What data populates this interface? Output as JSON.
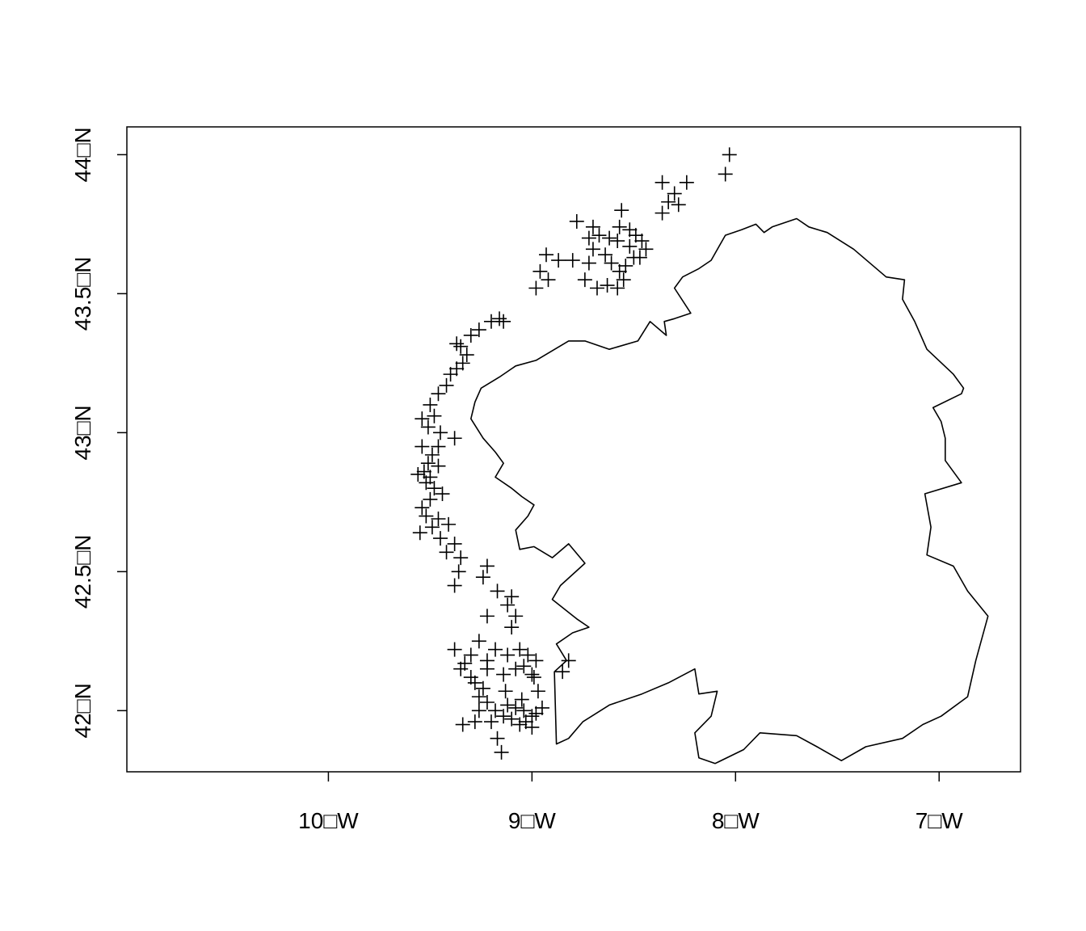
{
  "map": {
    "title": "",
    "x_ticks": [
      {
        "value": -10,
        "label": "10□W"
      },
      {
        "value": -9,
        "label": "9□W"
      },
      {
        "value": -8,
        "label": "8□W"
      },
      {
        "value": -7,
        "label": "7□W"
      }
    ],
    "y_ticks": [
      {
        "value": 42.0,
        "label": "42□N"
      },
      {
        "value": 42.5,
        "label": "42.5□N"
      },
      {
        "value": 43.0,
        "label": "43□N"
      },
      {
        "value": 43.5,
        "label": "43.5□N"
      },
      {
        "value": 44.0,
        "label": "44□N"
      }
    ],
    "xlim": [
      -10.99,
      -6.6
    ],
    "ylim": [
      41.78,
      44.1
    ],
    "colors": {
      "line": "#000000",
      "background": "#ffffff"
    },
    "point_symbol": "plus",
    "coastline": [
      [
        -8.89,
        42.14
      ],
      [
        -8.88,
        41.88
      ],
      [
        -8.82,
        41.9
      ],
      [
        -8.75,
        41.96
      ],
      [
        -8.62,
        42.02
      ],
      [
        -8.46,
        42.06
      ],
      [
        -8.33,
        42.1
      ],
      [
        -8.2,
        42.15
      ],
      [
        -8.18,
        42.06
      ],
      [
        -8.09,
        42.07
      ],
      [
        -8.12,
        41.98
      ],
      [
        -8.2,
        41.92
      ],
      [
        -8.18,
        41.83
      ],
      [
        -8.1,
        41.81
      ],
      [
        -7.96,
        41.86
      ],
      [
        -7.88,
        41.92
      ],
      [
        -7.7,
        41.91
      ],
      [
        -7.6,
        41.87
      ],
      [
        -7.48,
        41.82
      ],
      [
        -7.36,
        41.87
      ],
      [
        -7.18,
        41.9
      ],
      [
        -7.08,
        41.95
      ],
      [
        -6.99,
        41.98
      ],
      [
        -6.86,
        42.05
      ],
      [
        -6.82,
        42.18
      ],
      [
        -6.76,
        42.34
      ],
      [
        -6.86,
        42.43
      ],
      [
        -6.93,
        42.52
      ],
      [
        -7.06,
        42.56
      ],
      [
        -7.04,
        42.66
      ],
      [
        -7.07,
        42.78
      ],
      [
        -6.89,
        42.82
      ],
      [
        -6.97,
        42.9
      ],
      [
        -6.97,
        42.98
      ],
      [
        -6.99,
        43.04
      ],
      [
        -7.03,
        43.09
      ],
      [
        -6.89,
        43.14
      ],
      [
        -6.88,
        43.16
      ],
      [
        -6.93,
        43.21
      ],
      [
        -7.06,
        43.3
      ],
      [
        -7.12,
        43.4
      ],
      [
        -7.18,
        43.48
      ],
      [
        -7.17,
        43.55
      ],
      [
        -7.26,
        43.56
      ],
      [
        -7.42,
        43.66
      ],
      [
        -7.55,
        43.72
      ],
      [
        -7.64,
        43.74
      ],
      [
        -7.7,
        43.77
      ],
      [
        -7.82,
        43.74
      ],
      [
        -7.86,
        43.72
      ],
      [
        -7.9,
        43.75
      ],
      [
        -7.97,
        43.73
      ],
      [
        -8.05,
        43.71
      ],
      [
        -8.12,
        43.62
      ],
      [
        -8.18,
        43.59
      ],
      [
        -8.26,
        43.56
      ],
      [
        -8.3,
        43.52
      ],
      [
        -8.22,
        43.43
      ],
      [
        -8.3,
        43.41
      ],
      [
        -8.35,
        43.4
      ],
      [
        -8.34,
        43.35
      ],
      [
        -8.42,
        43.4
      ],
      [
        -8.48,
        43.33
      ],
      [
        -8.62,
        43.3
      ],
      [
        -8.74,
        43.33
      ],
      [
        -8.82,
        43.33
      ],
      [
        -8.98,
        43.26
      ],
      [
        -9.08,
        43.24
      ],
      [
        -9.16,
        43.2
      ],
      [
        -9.25,
        43.16
      ],
      [
        -9.28,
        43.11
      ],
      [
        -9.3,
        43.05
      ],
      [
        -9.24,
        42.98
      ],
      [
        -9.18,
        42.93
      ],
      [
        -9.14,
        42.89
      ],
      [
        -9.18,
        42.84
      ],
      [
        -9.1,
        42.8
      ],
      [
        -9.05,
        42.77
      ],
      [
        -8.99,
        42.74
      ],
      [
        -9.02,
        42.7
      ],
      [
        -9.08,
        42.65
      ],
      [
        -9.06,
        42.58
      ],
      [
        -8.99,
        42.59
      ],
      [
        -8.9,
        42.55
      ],
      [
        -8.82,
        42.6
      ],
      [
        -8.74,
        42.53
      ],
      [
        -8.86,
        42.45
      ],
      [
        -8.9,
        42.4
      ],
      [
        -8.78,
        42.33
      ],
      [
        -8.72,
        42.3
      ],
      [
        -8.8,
        42.28
      ],
      [
        -8.88,
        42.24
      ],
      [
        -8.83,
        42.18
      ],
      [
        -8.89,
        42.14
      ]
    ],
    "points": [
      [
        -8.03,
        44.0
      ],
      [
        -8.05,
        43.93
      ],
      [
        -8.36,
        43.9
      ],
      [
        -8.24,
        43.9
      ],
      [
        -8.3,
        43.86
      ],
      [
        -8.33,
        43.83
      ],
      [
        -8.28,
        43.82
      ],
      [
        -8.36,
        43.79
      ],
      [
        -8.56,
        43.8
      ],
      [
        -8.57,
        43.74
      ],
      [
        -8.52,
        43.73
      ],
      [
        -8.49,
        43.71
      ],
      [
        -8.46,
        43.69
      ],
      [
        -8.44,
        43.66
      ],
      [
        -8.47,
        43.63
      ],
      [
        -8.52,
        43.67
      ],
      [
        -8.58,
        43.69
      ],
      [
        -8.62,
        43.7
      ],
      [
        -8.67,
        43.71
      ],
      [
        -8.72,
        43.7
      ],
      [
        -8.78,
        43.76
      ],
      [
        -8.7,
        43.66
      ],
      [
        -8.64,
        43.64
      ],
      [
        -8.61,
        43.61
      ],
      [
        -8.57,
        43.58
      ],
      [
        -8.55,
        43.55
      ],
      [
        -8.58,
        43.52
      ],
      [
        -8.63,
        43.53
      ],
      [
        -8.68,
        43.52
      ],
      [
        -8.74,
        43.55
      ],
      [
        -8.8,
        43.62
      ],
      [
        -8.72,
        43.61
      ],
      [
        -8.87,
        43.62
      ],
      [
        -8.93,
        43.64
      ],
      [
        -8.96,
        43.58
      ],
      [
        -8.92,
        43.55
      ],
      [
        -8.98,
        43.52
      ],
      [
        -8.7,
        43.74
      ],
      [
        -8.54,
        43.6
      ],
      [
        -8.5,
        43.63
      ],
      [
        -9.14,
        43.4
      ],
      [
        -9.16,
        43.41
      ],
      [
        -9.2,
        43.4
      ],
      [
        -9.26,
        43.37
      ],
      [
        -9.3,
        43.35
      ],
      [
        -9.37,
        43.32
      ],
      [
        -9.35,
        43.31
      ],
      [
        -9.32,
        43.28
      ],
      [
        -9.34,
        43.25
      ],
      [
        -9.37,
        43.23
      ],
      [
        -9.4,
        43.21
      ],
      [
        -9.42,
        43.17
      ],
      [
        -9.46,
        43.14
      ],
      [
        -9.5,
        43.1
      ],
      [
        -9.48,
        43.06
      ],
      [
        -9.54,
        43.05
      ],
      [
        -9.51,
        43.02
      ],
      [
        -9.45,
        43.0
      ],
      [
        -9.38,
        42.98
      ],
      [
        -9.46,
        42.95
      ],
      [
        -9.54,
        42.95
      ],
      [
        -9.49,
        42.92
      ],
      [
        -9.51,
        42.89
      ],
      [
        -9.46,
        42.88
      ],
      [
        -9.53,
        42.86
      ],
      [
        -9.56,
        42.85
      ],
      [
        -9.5,
        42.84
      ],
      [
        -9.52,
        42.82
      ],
      [
        -9.48,
        42.8
      ],
      [
        -9.44,
        42.78
      ],
      [
        -9.5,
        42.76
      ],
      [
        -9.54,
        42.73
      ],
      [
        -9.52,
        42.7
      ],
      [
        -9.46,
        42.69
      ],
      [
        -9.41,
        42.67
      ],
      [
        -9.49,
        42.66
      ],
      [
        -9.55,
        42.64
      ],
      [
        -9.45,
        42.62
      ],
      [
        -9.38,
        42.6
      ],
      [
        -9.42,
        42.57
      ],
      [
        -9.35,
        42.55
      ],
      [
        -9.36,
        42.5
      ],
      [
        -9.38,
        42.45
      ],
      [
        -9.22,
        42.52
      ],
      [
        -9.24,
        42.48
      ],
      [
        -9.17,
        42.43
      ],
      [
        -9.1,
        42.41
      ],
      [
        -9.12,
        42.38
      ],
      [
        -9.08,
        42.34
      ],
      [
        -9.1,
        42.3
      ],
      [
        -9.22,
        42.34
      ],
      [
        -9.38,
        42.22
      ],
      [
        -9.3,
        42.2
      ],
      [
        -9.26,
        42.25
      ],
      [
        -9.18,
        42.22
      ],
      [
        -9.12,
        42.2
      ],
      [
        -9.06,
        42.22
      ],
      [
        -9.02,
        42.2
      ],
      [
        -8.98,
        42.18
      ],
      [
        -9.04,
        42.16
      ],
      [
        -9.0,
        42.13
      ],
      [
        -9.08,
        42.15
      ],
      [
        -9.14,
        42.13
      ],
      [
        -9.22,
        42.15
      ],
      [
        -9.3,
        42.12
      ],
      [
        -9.35,
        42.15
      ],
      [
        -9.28,
        42.1
      ],
      [
        -9.24,
        42.08
      ],
      [
        -9.26,
        42.05
      ],
      [
        -9.22,
        42.03
      ],
      [
        -9.26,
        42.0
      ],
      [
        -9.18,
        42.0
      ],
      [
        -9.12,
        42.02
      ],
      [
        -9.08,
        42.01
      ],
      [
        -9.04,
        42.0
      ],
      [
        -9.0,
        41.98
      ],
      [
        -9.03,
        41.96
      ],
      [
        -9.06,
        41.95
      ],
      [
        -9.1,
        41.97
      ],
      [
        -9.14,
        41.98
      ],
      [
        -9.2,
        41.96
      ],
      [
        -9.28,
        41.96
      ],
      [
        -9.34,
        41.95
      ],
      [
        -9.17,
        41.9
      ],
      [
        -9.15,
        41.85
      ],
      [
        -9.0,
        41.94
      ],
      [
        -8.98,
        41.99
      ],
      [
        -8.95,
        42.01
      ],
      [
        -8.97,
        42.07
      ],
      [
        -8.99,
        42.12
      ],
      [
        -8.82,
        42.18
      ],
      [
        -8.85,
        42.14
      ],
      [
        -9.05,
        42.04
      ],
      [
        -9.22,
        42.18
      ],
      [
        -9.33,
        42.17
      ],
      [
        -9.13,
        42.07
      ]
    ]
  }
}
